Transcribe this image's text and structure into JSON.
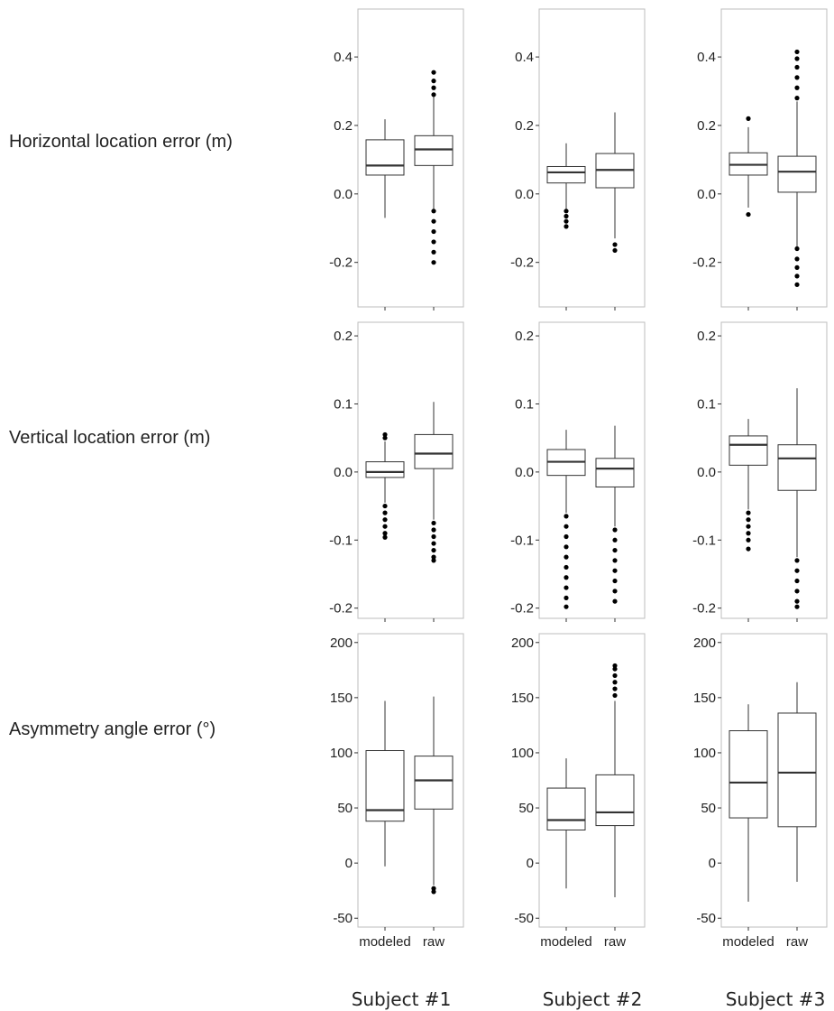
{
  "row_labels": [
    "Horizontal location error (m)",
    "Vertical location error (m)",
    "Asymmetry angle error (°)"
  ],
  "subject_labels": [
    "Subject #1",
    "Subject #2",
    "Subject #3"
  ],
  "colors": {
    "panel_border": "#bdbdbd",
    "box_line": "#333333",
    "median": "#333333",
    "outlier": "#000000",
    "tick": "#333333"
  },
  "chart_data": [
    {
      "type": "box",
      "title": "",
      "ylabel": "Horizontal location error (m)",
      "ylim": [
        -0.33,
        0.54
      ],
      "yticks": [
        -0.2,
        0.0,
        0.2,
        0.4
      ],
      "ytick_labels": [
        "-0.2",
        "0.0",
        "0.2",
        "0.4"
      ],
      "categories": [
        "modeled",
        "raw"
      ],
      "panels": [
        {
          "subject": "Subject #1",
          "boxes": [
            {
              "q1": 0.055,
              "median": 0.083,
              "q3": 0.158,
              "whisker_low": -0.07,
              "whisker_high": 0.218,
              "outliers_low": [],
              "outliers_high": []
            },
            {
              "q1": 0.083,
              "median": 0.13,
              "q3": 0.17,
              "whisker_low": -0.05,
              "whisker_high": 0.29,
              "outliers_low": [
                -0.05,
                -0.08,
                -0.11,
                -0.14,
                -0.17,
                -0.2
              ],
              "outliers_high": [
                0.29,
                0.31,
                0.33,
                0.355
              ]
            }
          ]
        },
        {
          "subject": "Subject #2",
          "boxes": [
            {
              "q1": 0.032,
              "median": 0.063,
              "q3": 0.08,
              "whisker_low": -0.045,
              "whisker_high": 0.148,
              "outliers_low": [
                -0.05,
                -0.065,
                -0.08,
                -0.095
              ],
              "outliers_high": []
            },
            {
              "q1": 0.018,
              "median": 0.07,
              "q3": 0.118,
              "whisker_low": -0.13,
              "whisker_high": 0.238,
              "outliers_low": [
                -0.148,
                -0.165
              ],
              "outliers_high": []
            }
          ]
        },
        {
          "subject": "Subject #3",
          "boxes": [
            {
              "q1": 0.055,
              "median": 0.085,
              "q3": 0.12,
              "whisker_low": -0.04,
              "whisker_high": 0.195,
              "outliers_low": [
                -0.06
              ],
              "outliers_high": [
                0.22
              ]
            },
            {
              "q1": 0.005,
              "median": 0.065,
              "q3": 0.11,
              "whisker_low": -0.155,
              "whisker_high": 0.27,
              "outliers_low": [
                -0.16,
                -0.19,
                -0.215,
                -0.24,
                -0.265
              ],
              "outliers_high": [
                0.28,
                0.31,
                0.34,
                0.37,
                0.395,
                0.415
              ]
            }
          ]
        }
      ]
    },
    {
      "type": "box",
      "title": "",
      "ylabel": "Vertical location error (m)",
      "ylim": [
        -0.215,
        0.22
      ],
      "yticks": [
        -0.2,
        -0.1,
        0.0,
        0.1,
        0.2
      ],
      "ytick_labels": [
        "-0.2",
        "-0.1",
        "0.0",
        "0.1",
        "0.2"
      ],
      "categories": [
        "modeled",
        "raw"
      ],
      "panels": [
        {
          "subject": "Subject #1",
          "boxes": [
            {
              "q1": -0.008,
              "median": 0.0,
              "q3": 0.015,
              "whisker_low": -0.045,
              "whisker_high": 0.045,
              "outliers_low": [
                -0.05,
                -0.06,
                -0.07,
                -0.08,
                -0.09,
                -0.096
              ],
              "outliers_high": [
                0.05,
                0.055
              ]
            },
            {
              "q1": 0.005,
              "median": 0.027,
              "q3": 0.055,
              "whisker_low": -0.07,
              "whisker_high": 0.103,
              "outliers_low": [
                -0.075,
                -0.085,
                -0.095,
                -0.105,
                -0.115,
                -0.125,
                -0.13
              ],
              "outliers_high": []
            }
          ]
        },
        {
          "subject": "Subject #2",
          "boxes": [
            {
              "q1": -0.005,
              "median": 0.015,
              "q3": 0.033,
              "whisker_low": -0.06,
              "whisker_high": 0.062,
              "outliers_low": [
                -0.065,
                -0.08,
                -0.095,
                -0.11,
                -0.125,
                -0.14,
                -0.155,
                -0.17,
                -0.185,
                -0.198
              ],
              "outliers_high": []
            },
            {
              "q1": -0.022,
              "median": 0.005,
              "q3": 0.02,
              "whisker_low": -0.08,
              "whisker_high": 0.068,
              "outliers_low": [
                -0.085,
                -0.1,
                -0.115,
                -0.13,
                -0.145,
                -0.16,
                -0.175,
                -0.19
              ],
              "outliers_high": []
            }
          ]
        },
        {
          "subject": "Subject #3",
          "boxes": [
            {
              "q1": 0.01,
              "median": 0.04,
              "q3": 0.053,
              "whisker_low": -0.055,
              "whisker_high": 0.078,
              "outliers_low": [
                -0.06,
                -0.07,
                -0.08,
                -0.09,
                -0.1,
                -0.113
              ],
              "outliers_high": []
            },
            {
              "q1": -0.027,
              "median": 0.02,
              "q3": 0.04,
              "whisker_low": -0.125,
              "whisker_high": 0.123,
              "outliers_low": [
                -0.13,
                -0.145,
                -0.16,
                -0.175,
                -0.19,
                -0.198
              ],
              "outliers_high": []
            }
          ]
        }
      ]
    },
    {
      "type": "box",
      "title": "",
      "ylabel": "Asymmetry angle error (°)",
      "ylim": [
        -58,
        208
      ],
      "yticks": [
        -50,
        0,
        50,
        100,
        150,
        200
      ],
      "ytick_labels": [
        "-50",
        "0",
        "50",
        "100",
        "150",
        "200"
      ],
      "categories": [
        "modeled",
        "raw"
      ],
      "panels": [
        {
          "subject": "Subject #1",
          "boxes": [
            {
              "q1": 38,
              "median": 48,
              "q3": 102,
              "whisker_low": -3,
              "whisker_high": 147,
              "outliers_low": [],
              "outliers_high": []
            },
            {
              "q1": 49,
              "median": 75,
              "q3": 97,
              "whisker_low": -20,
              "whisker_high": 151,
              "outliers_low": [
                -23,
                -26
              ],
              "outliers_high": []
            }
          ]
        },
        {
          "subject": "Subject #2",
          "boxes": [
            {
              "q1": 30,
              "median": 39,
              "q3": 68,
              "whisker_low": -23,
              "whisker_high": 95,
              "outliers_low": [],
              "outliers_high": []
            },
            {
              "q1": 34,
              "median": 46,
              "q3": 80,
              "whisker_low": -31,
              "whisker_high": 147,
              "outliers_low": [],
              "outliers_high": [
                152,
                158,
                164,
                170,
                176,
                179
              ]
            }
          ]
        },
        {
          "subject": "Subject #3",
          "boxes": [
            {
              "q1": 41,
              "median": 73,
              "q3": 120,
              "whisker_low": -35,
              "whisker_high": 144,
              "outliers_low": [],
              "outliers_high": []
            },
            {
              "q1": 33,
              "median": 82,
              "q3": 136,
              "whisker_low": -17,
              "whisker_high": 164,
              "outliers_low": [],
              "outliers_high": []
            }
          ]
        }
      ]
    }
  ]
}
